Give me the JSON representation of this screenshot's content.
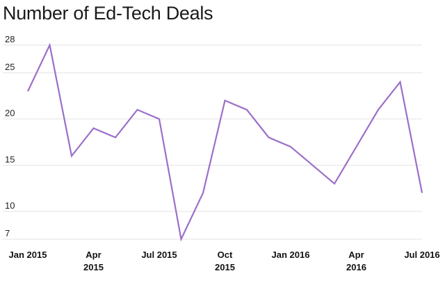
{
  "chart_data": {
    "type": "line",
    "title": "Number of Ed-Tech Deals",
    "xlabel": "",
    "ylabel": "",
    "ylim": [
      7,
      28
    ],
    "yticks": [
      28,
      25,
      20,
      15,
      10,
      7
    ],
    "xticks": [
      {
        "index": 0,
        "lines": [
          "Jan 2015"
        ]
      },
      {
        "index": 3,
        "lines": [
          "Apr",
          "2015"
        ]
      },
      {
        "index": 6,
        "lines": [
          "Jul 2015"
        ]
      },
      {
        "index": 9,
        "lines": [
          "Oct",
          "2015"
        ]
      },
      {
        "index": 12,
        "lines": [
          "Jan 2016"
        ]
      },
      {
        "index": 15,
        "lines": [
          "Apr",
          "2016"
        ]
      },
      {
        "index": 18,
        "lines": [
          "Jul 2016"
        ]
      }
    ],
    "x": [
      "Jan 2015",
      "Feb 2015",
      "Mar 2015",
      "Apr 2015",
      "May 2015",
      "Jun 2015",
      "Jul 2015",
      "Aug 2015",
      "Sep 2015",
      "Oct 2015",
      "Nov 2015",
      "Dec 2015",
      "Jan 2016",
      "Feb 2016",
      "Mar 2016",
      "Apr 2016",
      "May 2016",
      "Jun 2016",
      "Jul 2016"
    ],
    "series": [
      {
        "values": [
          23,
          28,
          16,
          19,
          18,
          21,
          20,
          7,
          12,
          22,
          21,
          18,
          17,
          15,
          13,
          17,
          21,
          24,
          12
        ]
      }
    ],
    "line_color": "#9b6fc9",
    "grid": true,
    "legend": "none"
  }
}
